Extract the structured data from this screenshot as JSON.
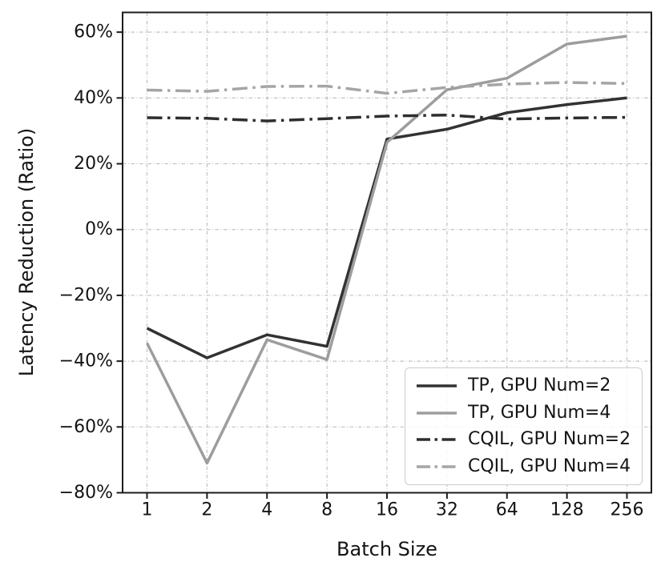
{
  "figure": {
    "background": "#ffffff"
  },
  "colors": {
    "grid": "#c2c2c2",
    "spine": "#1c1c1c",
    "tick": "#1c1c1c",
    "text": "#141414",
    "legend_border": "#cccccc",
    "dark_series": "#323232",
    "gray_series": "#9d9d9d"
  },
  "chart_data": {
    "type": "line",
    "title": "",
    "xlabel": "Batch Size",
    "ylabel": "Latency Reduction (Ratio)",
    "x_scale": "log2-categorical",
    "categories": [
      "1",
      "2",
      "4",
      "8",
      "16",
      "32",
      "64",
      "128",
      "256"
    ],
    "y_ticks": [
      60,
      40,
      20,
      0,
      -20,
      -40,
      -60,
      -80
    ],
    "y_tick_labels": [
      "60%",
      "40%",
      "20%",
      "0%",
      "−20%",
      "−40%",
      "−60%",
      "−80%"
    ],
    "ylim": [
      -80,
      66
    ],
    "grid": true,
    "grid_style": "dashdot",
    "legend_position": "lower right",
    "series": [
      {
        "name": "TP, GPU Num=2",
        "color": "#323232",
        "line_style": "solid",
        "values": [
          -30,
          -39,
          -32,
          -35.5,
          27.5,
          30.5,
          35.5,
          38,
          40
        ]
      },
      {
        "name": "TP, GPU Num=4",
        "color": "#9d9d9d",
        "line_style": "solid",
        "values": [
          -34.5,
          -71,
          -33.5,
          -39.5,
          26.5,
          42.5,
          46,
          56.4,
          58.8
        ]
      },
      {
        "name": "CQIL, GPU Num=2",
        "color": "#2e2e2e",
        "line_style": "dashdot",
        "values": [
          34,
          33.8,
          33,
          33.7,
          34.5,
          34.8,
          33.6,
          33.9,
          34.1
        ]
      },
      {
        "name": "CQIL, GPU Num=4",
        "color": "#a5a5a5",
        "line_style": "dashdot",
        "values": [
          42.4,
          42,
          43.5,
          43.6,
          41.4,
          43.2,
          44.2,
          44.7,
          44.4
        ]
      }
    ]
  }
}
